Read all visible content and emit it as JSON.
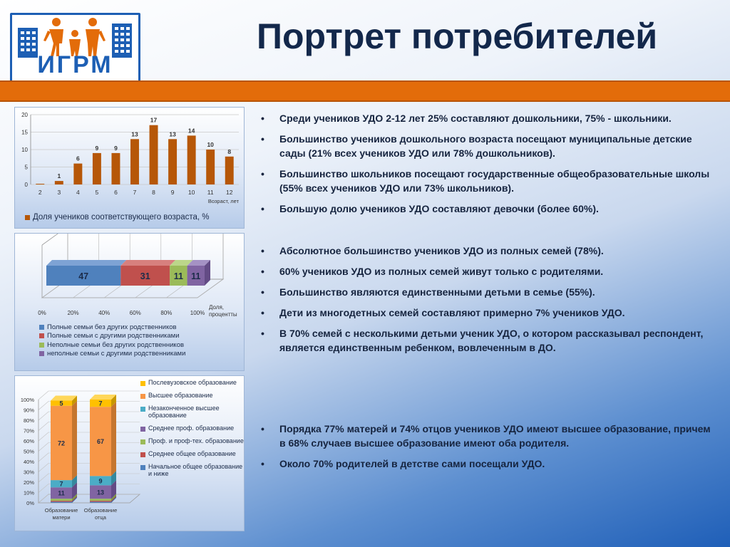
{
  "header": {
    "logo_text": "ИГРМ",
    "title": "Портрет потребителей"
  },
  "bullets_group1": [
    "Среди учеников УДО 2-12 лет 25% составляют дошкольники, 75% - школьники.",
    "Большинство учеников дошкольного возраста посещают муниципальные детские сады (21% всех учеников УДО или 78% дошкольников).",
    "Большинство школьников посещают государственные общеобразовательные школы (55% всех учеников УДО или 73% школьников).",
    "Большую долю учеников УДО составляют девочки (более 60%)."
  ],
  "bullets_group2": [
    "Абсолютное большинство учеников УДО из полных семей (78%).",
    "60% учеников УДО из полных семей живут только с родителями.",
    "Большинство являются единственными  детьми в семье (55%).",
    "Дети из многодетных семей составляют примерно 7% учеников УДО.",
    "В 70% семей с несколькими детьми ученик УДО, о котором рассказывал респондент, является единственным ребенком, вовлеченным в ДО."
  ],
  "bullets_group3": [
    "Порядка 77% матерей и 74% отцов учеников УДО имеют высшее образование, причем в 68% случаев высшее образование имеют оба родителя.",
    "Около 70% родителей в детстве сами посещали УДО."
  ],
  "chart_data": [
    {
      "type": "bar",
      "categories": [
        "2",
        "3",
        "4",
        "5",
        "6",
        "7",
        "8",
        "9",
        "10",
        "11",
        "12"
      ],
      "series": [
        {
          "name": "Доля учеников соответствующего возраста, %",
          "values": [
            0,
            1,
            6,
            9,
            9,
            13,
            17,
            13,
            14,
            10,
            8
          ]
        }
      ],
      "data_labels": [
        "",
        "1",
        "6",
        "9",
        "9",
        "13",
        "17",
        "13",
        "14",
        "10",
        "8"
      ],
      "xlabel": "Возраст, лет",
      "ylim": [
        0,
        20
      ],
      "yticks": [
        "0",
        "5",
        "10",
        "15",
        "20"
      ],
      "grid": true,
      "legend": "bottom",
      "colors": [
        "#b65708"
      ]
    },
    {
      "type": "bar",
      "orientation": "horizontal-stacked",
      "series": [
        {
          "name": "Полные семьи без других родственников",
          "value": 47
        },
        {
          "name": "Полные семьи с другими родственниками",
          "value": 31
        },
        {
          "name": "Неполные семьи без других родственников",
          "value": 11
        },
        {
          "name": "неполные семьи с другими родственниками",
          "value": 11
        }
      ],
      "xticks": [
        "0%",
        "20%",
        "40%",
        "60%",
        "80%",
        "100%"
      ],
      "xlabel": "Доля, процентты",
      "xlabel_lines": [
        "Доля,",
        "процентты"
      ],
      "xlim": [
        0,
        100
      ],
      "legend": "bottom",
      "colors": [
        "#4f81bd",
        "#c0504d",
        "#9bbb59",
        "#8064a2"
      ]
    },
    {
      "type": "bar",
      "orientation": "vertical-stacked",
      "categories": [
        "Образование матери",
        "Образование отца"
      ],
      "category_lines": [
        [
          "Образование",
          "матери"
        ],
        [
          "Образование",
          "отца"
        ]
      ],
      "series": [
        {
          "name": "Начальное общее образование и ниже",
          "values": [
            1,
            1
          ]
        },
        {
          "name": "Среднее общее образование",
          "values": [
            1,
            1
          ]
        },
        {
          "name": "Проф. и проф-тех. образование",
          "values": [
            2,
            2
          ]
        },
        {
          "name": "Среднее проф. образование",
          "values": [
            11,
            13
          ]
        },
        {
          "name": "Незаконченное высшее образование",
          "values": [
            7,
            9
          ]
        },
        {
          "name": "Высшее образование",
          "values": [
            72,
            67
          ]
        },
        {
          "name": "Послевузовское образование",
          "values": [
            5,
            7
          ]
        }
      ],
      "data_labels": {
        "Среднее проф. образование": [
          "11",
          "13"
        ],
        "Незаконченное высшее образование": [
          "7",
          "9"
        ],
        "Высшее образование": [
          "72",
          "67"
        ],
        "Послевузовское образование": [
          "5",
          "7"
        ]
      },
      "yticks": [
        "0%",
        "10%",
        "20%",
        "30%",
        "40%",
        "50%",
        "60%",
        "70%",
        "80%",
        "90%",
        "100%"
      ],
      "ylim": [
        0,
        100
      ],
      "legend": "right",
      "legend_order": [
        "Послевузовское образование",
        "Высшее образование",
        "Незаконченное высшее образование",
        "Среднее проф. образование",
        "Проф. и проф-тех. образование",
        "Среднее общее образование",
        "Начальное общее образование и ниже"
      ],
      "colors": [
        "#4f81bd",
        "#c0504d",
        "#9bbb59",
        "#8064a2",
        "#4bacc6",
        "#f79646",
        "#ffc000"
      ]
    }
  ]
}
